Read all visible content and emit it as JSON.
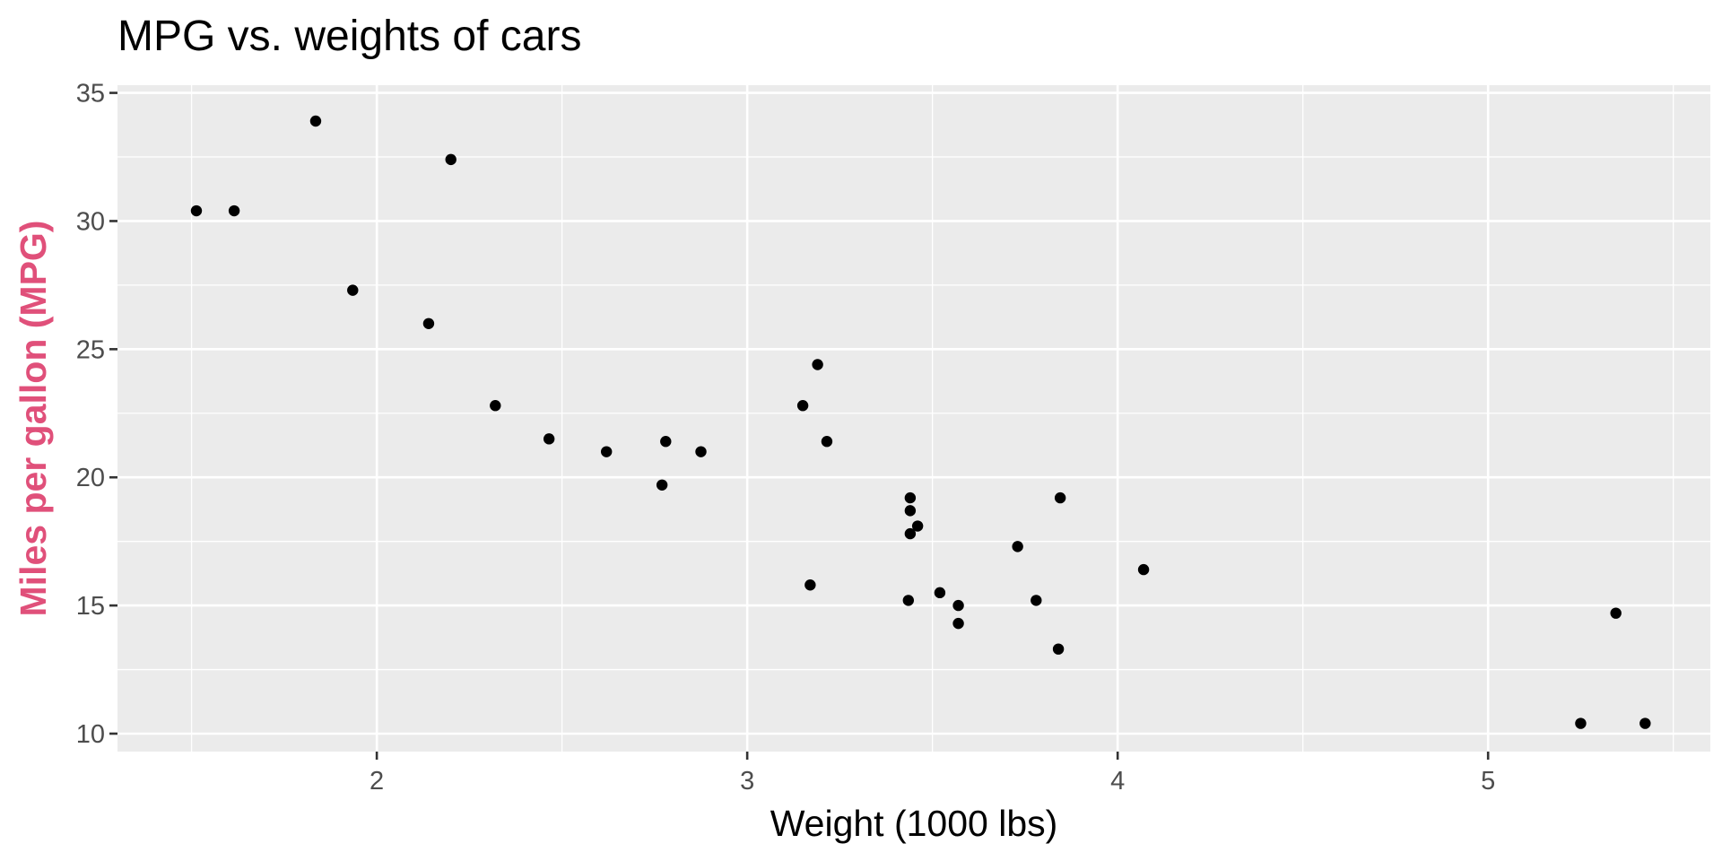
{
  "chart_data": {
    "type": "scatter",
    "title": "MPG vs. weights of cars",
    "xlabel": "Weight (1000 lbs)",
    "ylabel": "Miles per gallon (MPG)",
    "xlim": [
      1.3,
      5.6
    ],
    "ylim": [
      9.3,
      35.3
    ],
    "x_ticks": [
      2,
      3,
      4,
      5
    ],
    "y_ticks": [
      10,
      15,
      20,
      25,
      30,
      35
    ],
    "x_minor_ticks": [
      1.5,
      2.5,
      3.5,
      4.5,
      5.5
    ],
    "y_minor_ticks": [
      12.5,
      17.5,
      22.5,
      27.5,
      32.5
    ],
    "grid": true,
    "colors": {
      "panel_background": "#ebebeb",
      "grid": "#ffffff",
      "point": "#000000",
      "ylabel": "#e0507a",
      "tick_label": "#4d4d4d"
    },
    "points": [
      {
        "x": 2.62,
        "y": 21.0
      },
      {
        "x": 2.875,
        "y": 21.0
      },
      {
        "x": 2.32,
        "y": 22.8
      },
      {
        "x": 3.215,
        "y": 21.4
      },
      {
        "x": 3.44,
        "y": 18.7
      },
      {
        "x": 3.46,
        "y": 18.1
      },
      {
        "x": 3.57,
        "y": 14.3
      },
      {
        "x": 3.19,
        "y": 24.4
      },
      {
        "x": 3.15,
        "y": 22.8
      },
      {
        "x": 3.44,
        "y": 19.2
      },
      {
        "x": 3.44,
        "y": 17.8
      },
      {
        "x": 4.07,
        "y": 16.4
      },
      {
        "x": 3.73,
        "y": 17.3
      },
      {
        "x": 3.78,
        "y": 15.2
      },
      {
        "x": 5.25,
        "y": 10.4
      },
      {
        "x": 5.424,
        "y": 10.4
      },
      {
        "x": 5.345,
        "y": 14.7
      },
      {
        "x": 2.2,
        "y": 32.4
      },
      {
        "x": 1.615,
        "y": 30.4
      },
      {
        "x": 1.835,
        "y": 33.9
      },
      {
        "x": 2.465,
        "y": 21.5
      },
      {
        "x": 3.52,
        "y": 15.5
      },
      {
        "x": 3.435,
        "y": 15.2
      },
      {
        "x": 3.84,
        "y": 13.3
      },
      {
        "x": 3.845,
        "y": 19.2
      },
      {
        "x": 1.935,
        "y": 27.3
      },
      {
        "x": 2.14,
        "y": 26.0
      },
      {
        "x": 1.513,
        "y": 30.4
      },
      {
        "x": 3.17,
        "y": 15.8
      },
      {
        "x": 2.77,
        "y": 19.7
      },
      {
        "x": 3.57,
        "y": 15.0
      },
      {
        "x": 2.78,
        "y": 21.4
      }
    ]
  }
}
